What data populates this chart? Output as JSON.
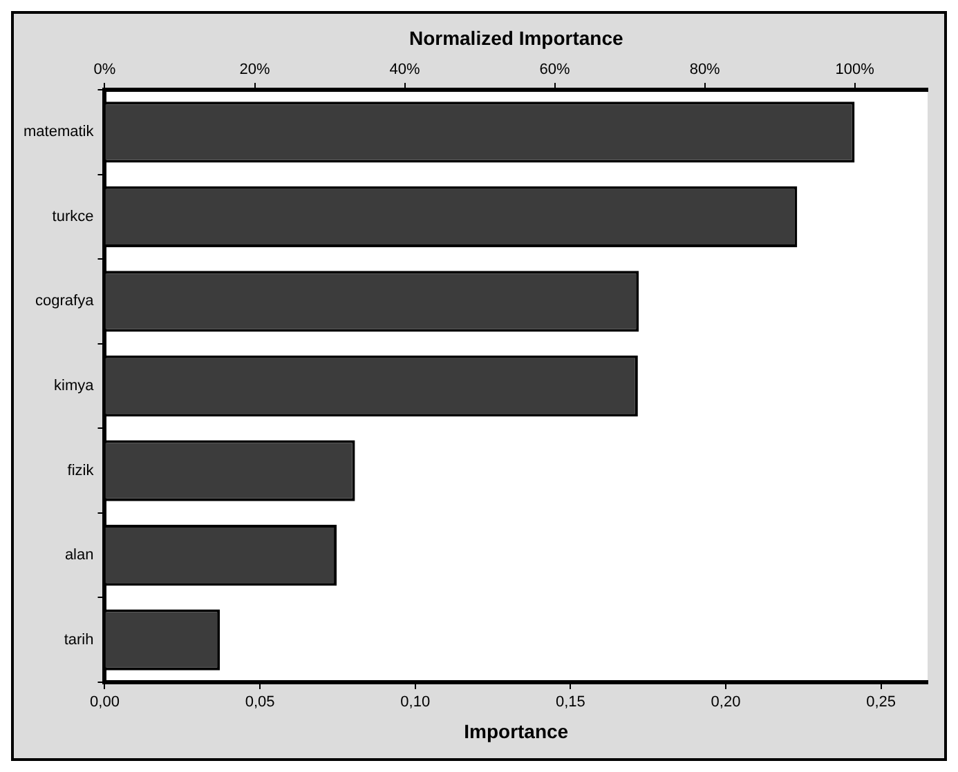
{
  "chart_data": {
    "type": "bar",
    "orientation": "horizontal",
    "xlabel": "Importance",
    "x2label": "Normalized Importance",
    "categories": [
      "matematik",
      "turkce",
      "cografya",
      "kimya",
      "fizik",
      "alan",
      "tarih"
    ],
    "values": [
      0.2415,
      0.223,
      0.172,
      0.1717,
      0.0806,
      0.0747,
      0.0371
    ],
    "color": "#3c3c3c",
    "xlim": [
      0,
      0.265
    ],
    "xticks": [
      {
        "value": 0,
        "label": "0,00"
      },
      {
        "value": 0.05,
        "label": "0,05"
      },
      {
        "value": 0.1,
        "label": "0,10"
      },
      {
        "value": 0.15,
        "label": "0,15"
      },
      {
        "value": 0.2,
        "label": "0,20"
      },
      {
        "value": 0.25,
        "label": "0,25"
      }
    ],
    "x2lim": [
      0,
      109.7
    ],
    "x2ticks": [
      {
        "value": 0,
        "label": "0%"
      },
      {
        "value": 20,
        "label": "20%"
      },
      {
        "value": 40,
        "label": "40%"
      },
      {
        "value": 60,
        "label": "60%"
      },
      {
        "value": 80,
        "label": "80%"
      },
      {
        "value": 100,
        "label": "100%"
      }
    ],
    "grid": false,
    "legend": false
  }
}
